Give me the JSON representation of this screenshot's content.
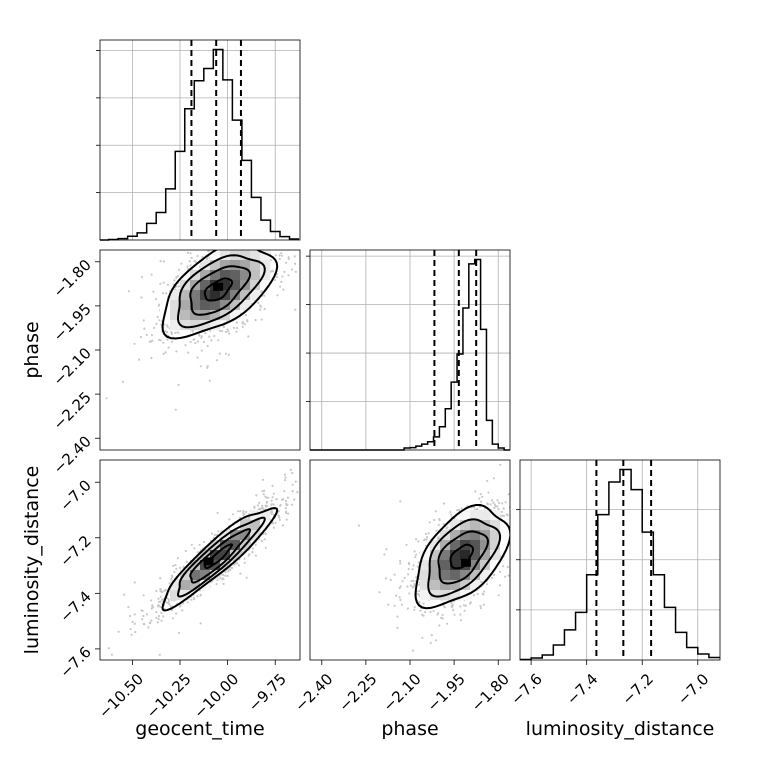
{
  "figure_type": "corner-plot",
  "colors": {
    "density": "#000000",
    "scatter": "#9a9a9a",
    "grid": "#b0b0b0"
  },
  "chart_data": [
    {
      "type": "histogram",
      "panel": "geocent_time-marginal",
      "bin_edges": [
        -10.675,
        -10.625,
        -10.575,
        -10.525,
        -10.475,
        -10.425,
        -10.375,
        -10.325,
        -10.275,
        -10.225,
        -10.175,
        -10.125,
        -10.075,
        -10.025,
        -9.975,
        -9.925,
        -9.875,
        -9.825,
        -9.775,
        -9.725,
        -9.675,
        -9.625
      ],
      "counts": [
        0,
        1,
        3,
        8,
        15,
        35,
        58,
        108,
        187,
        277,
        336,
        362,
        402,
        338,
        253,
        168,
        90,
        42,
        18,
        7,
        2
      ],
      "xlim": [
        -10.67,
        -9.62
      ],
      "quantiles": [
        -10.19,
        -10.06,
        -9.93
      ],
      "grid": true
    },
    {
      "type": "histogram",
      "panel": "phase-marginal",
      "bin_edges": [
        -2.44,
        -2.42,
        -2.4,
        -2.38,
        -2.36,
        -2.34,
        -2.32,
        -2.3,
        -2.28,
        -2.26,
        -2.24,
        -2.22,
        -2.2,
        -2.18,
        -2.16,
        -2.14,
        -2.12,
        -2.1,
        -2.08,
        -2.06,
        -2.04,
        -2.02,
        -2.0,
        -1.98,
        -1.96,
        -1.94,
        -1.92,
        -1.9,
        -1.88,
        -1.86,
        -1.84,
        -1.82,
        -1.8,
        -1.78,
        -1.76
      ],
      "counts": [
        0,
        0,
        0,
        0,
        0,
        0,
        0,
        0,
        0,
        0,
        0,
        0,
        0,
        0,
        0,
        0,
        4,
        5,
        8,
        12,
        17,
        27,
        48,
        85,
        140,
        198,
        293,
        384,
        393,
        249,
        61,
        12,
        4,
        0
      ],
      "xlim": [
        -2.44,
        -1.76
      ],
      "quantiles": [
        -2.017,
        -1.934,
        -1.875
      ],
      "grid": true
    },
    {
      "type": "histogram",
      "panel": "luminosity_distance-marginal",
      "bin_edges": [
        -7.64,
        -7.6,
        -7.56,
        -7.52,
        -7.48,
        -7.44,
        -7.4,
        -7.36,
        -7.32,
        -7.28,
        -7.24,
        -7.2,
        -7.16,
        -7.12,
        -7.08,
        -7.04,
        -7.0,
        -6.96,
        -6.92,
        -6.88
      ],
      "counts": [
        1,
        4,
        10,
        30,
        60,
        95,
        170,
        290,
        355,
        380,
        340,
        255,
        170,
        105,
        55,
        25,
        12,
        5,
        1
      ],
      "xlim": [
        -7.64,
        -6.92
      ],
      "quantiles": [
        -7.365,
        -7.268,
        -7.168
      ],
      "grid": true
    },
    {
      "type": "heatmap",
      "panel": "geocent_time-vs-phase",
      "x_center": -10.05,
      "y_center": -1.895,
      "x_sd": 0.14,
      "y_sd": 0.075,
      "correlation": 0.55,
      "xlim": [
        -10.67,
        -9.62
      ],
      "ylim": [
        -2.44,
        -1.76
      ],
      "contour_levels": [
        0.5,
        1.1,
        1.6,
        2.1
      ],
      "peak": [
        -10.05,
        -1.885
      ]
    },
    {
      "type": "heatmap",
      "panel": "geocent_time-vs-luminosity_distance",
      "x_center": -10.05,
      "y_center": -7.268,
      "x_sd": 0.14,
      "y_sd": 0.085,
      "correlation": 0.92,
      "xlim": [
        -10.67,
        -9.62
      ],
      "ylim": [
        -7.64,
        -6.92
      ],
      "contour_levels": [
        0.5,
        1.1,
        1.6,
        2.1
      ],
      "peak": [
        -10.1,
        -7.285
      ]
    },
    {
      "type": "heatmap",
      "panel": "phase-vs-luminosity_distance",
      "x_center": -1.925,
      "y_center": -7.268,
      "x_sd": 0.075,
      "y_sd": 0.085,
      "correlation": 0.5,
      "xlim": [
        -2.44,
        -1.76
      ],
      "ylim": [
        -7.64,
        -6.92
      ],
      "contour_levels": [
        0.5,
        1.1,
        1.6,
        2.1
      ],
      "peak": [
        -1.91,
        -7.29
      ]
    }
  ],
  "axes": {
    "geocent_time": {
      "label": "geocent_time",
      "ticks": [
        -10.5,
        -10.25,
        -10.0,
        -9.75
      ],
      "tick_labels": [
        "−10.50",
        "−10.25",
        "−10.00",
        "−9.75"
      ]
    },
    "phase": {
      "label": "phase",
      "ticks": [
        -2.4,
        -2.25,
        -2.1,
        -1.95,
        -1.8
      ],
      "tick_labels": [
        "−2.40",
        "−2.25",
        "−2.10",
        "−1.95",
        "−1.80"
      ]
    },
    "luminosity_distance": {
      "label": "luminosity_distance",
      "ticks": [
        -7.6,
        -7.4,
        -7.2,
        -7.0
      ],
      "tick_labels": [
        "−7.6",
        "−7.4",
        "−7.2",
        "−7.0"
      ]
    }
  }
}
